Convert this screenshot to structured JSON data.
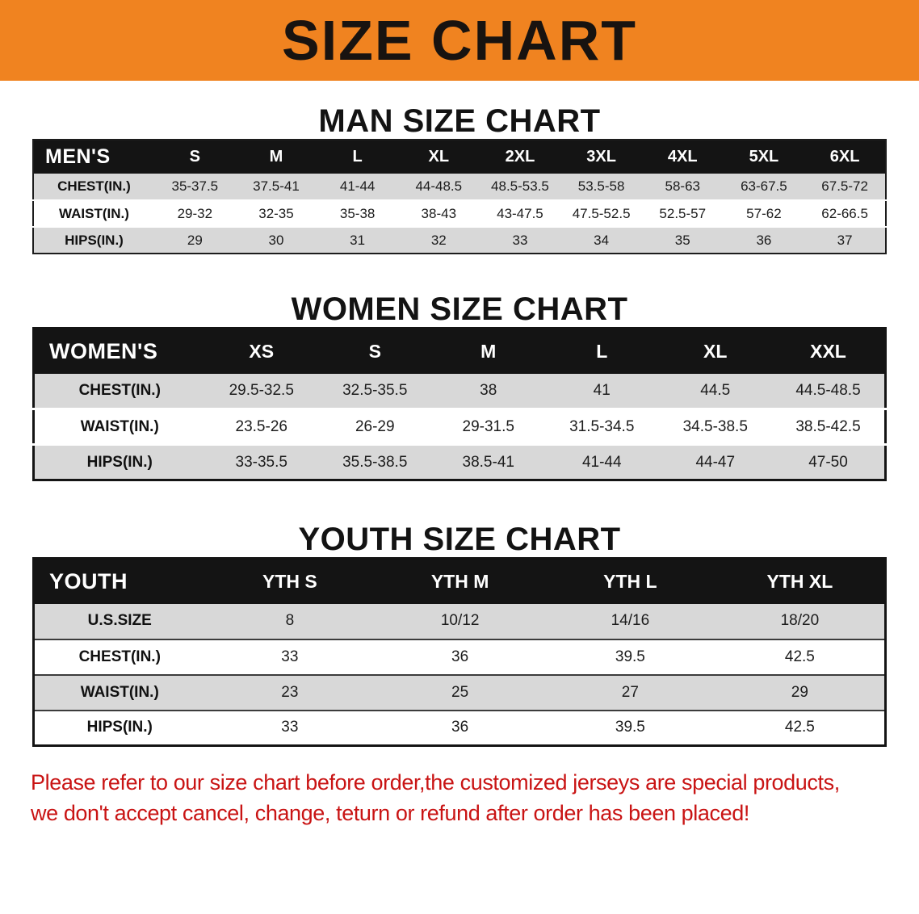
{
  "banner": {
    "title": "SIZE CHART"
  },
  "colors": {
    "banner_bg": "#f08320",
    "table_header_bg": "#141414",
    "row_shaded": "#d8d8d8",
    "footer_text": "#c91414"
  },
  "chart_data": [
    {
      "type": "table",
      "title": "MAN SIZE CHART",
      "corner_label": "MEN'S",
      "columns": [
        "S",
        "M",
        "L",
        "XL",
        "2XL",
        "3XL",
        "4XL",
        "5XL",
        "6XL"
      ],
      "rows": [
        {
          "label": "CHEST(IN.)",
          "values": [
            "35-37.5",
            "37.5-41",
            "41-44",
            "44-48.5",
            "48.5-53.5",
            "53.5-58",
            "58-63",
            "63-67.5",
            "67.5-72"
          ]
        },
        {
          "label": "WAIST(IN.)",
          "values": [
            "29-32",
            "32-35",
            "35-38",
            "38-43",
            "43-47.5",
            "47.5-52.5",
            "52.5-57",
            "57-62",
            "62-66.5"
          ]
        },
        {
          "label": "HIPS(IN.)",
          "values": [
            "29",
            "30",
            "31",
            "32",
            "33",
            "34",
            "35",
            "36",
            "37"
          ]
        }
      ]
    },
    {
      "type": "table",
      "title": "WOMEN SIZE CHART",
      "corner_label": "WOMEN'S",
      "columns": [
        "XS",
        "S",
        "M",
        "L",
        "XL",
        "XXL"
      ],
      "rows": [
        {
          "label": "CHEST(IN.)",
          "values": [
            "29.5-32.5",
            "32.5-35.5",
            "38",
            "41",
            "44.5",
            "44.5-48.5"
          ]
        },
        {
          "label": "WAIST(IN.)",
          "values": [
            "23.5-26",
            "26-29",
            "29-31.5",
            "31.5-34.5",
            "34.5-38.5",
            "38.5-42.5"
          ]
        },
        {
          "label": "HIPS(IN.)",
          "values": [
            "33-35.5",
            "35.5-38.5",
            "38.5-41",
            "41-44",
            "44-47",
            "47-50"
          ]
        }
      ]
    },
    {
      "type": "table",
      "title": "YOUTH SIZE CHART",
      "corner_label": "YOUTH",
      "columns": [
        "YTH S",
        "YTH M",
        "YTH L",
        "YTH XL"
      ],
      "rows": [
        {
          "label": "U.S.SIZE",
          "values": [
            "8",
            "10/12",
            "14/16",
            "18/20"
          ]
        },
        {
          "label": "CHEST(IN.)",
          "values": [
            "33",
            "36",
            "39.5",
            "42.5"
          ]
        },
        {
          "label": "WAIST(IN.)",
          "values": [
            "23",
            "25",
            "27",
            "29"
          ]
        },
        {
          "label": "HIPS(IN.)",
          "values": [
            "33",
            "36",
            "39.5",
            "42.5"
          ]
        }
      ]
    }
  ],
  "footer": {
    "line1": "Please refer to our size chart before order,the customized jerseys are special products,",
    "line2": "we don't accept cancel, change, teturn or refund after order has been placed!"
  }
}
